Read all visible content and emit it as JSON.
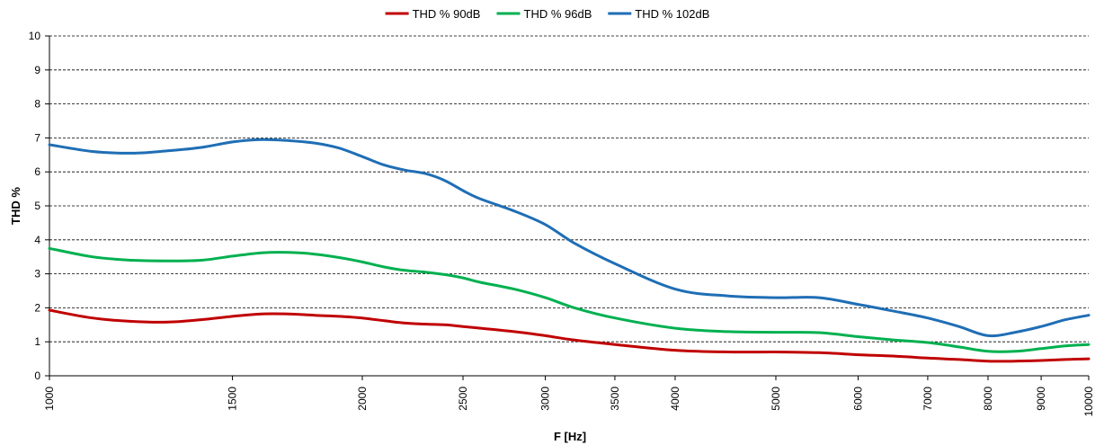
{
  "chart_data": {
    "type": "line",
    "xlabel": "F [Hz]",
    "ylabel": "THD %",
    "xscale": "log",
    "xlim": [
      1000,
      10000
    ],
    "ylim": [
      0,
      10
    ],
    "y_ticks": [
      "0",
      "1",
      "2",
      "3",
      "4",
      "5",
      "6",
      "7",
      "8",
      "9",
      "10"
    ],
    "x_ticks": [
      "1000",
      "1500",
      "2000",
      "2500",
      "3000",
      "3500",
      "4000",
      "5000",
      "6000",
      "7000",
      "8000",
      "9000",
      "10000"
    ],
    "grid": "horizontal-dashed",
    "legend_position": "top-center",
    "x": [
      1000,
      1100,
      1200,
      1300,
      1400,
      1500,
      1600,
      1700,
      1800,
      1900,
      2000,
      2100,
      2200,
      2300,
      2400,
      2500,
      2600,
      2800,
      3000,
      3200,
      3500,
      4000,
      4500,
      5000,
      5500,
      6000,
      6500,
      7000,
      7500,
      8000,
      8500,
      9000,
      9500,
      10000
    ],
    "series": [
      {
        "name": "THD % 90dB",
        "color": "#c00000",
        "values": [
          1.93,
          1.7,
          1.6,
          1.58,
          1.65,
          1.75,
          1.82,
          1.82,
          1.78,
          1.75,
          1.7,
          1.62,
          1.55,
          1.52,
          1.5,
          1.45,
          1.4,
          1.3,
          1.18,
          1.05,
          0.92,
          0.75,
          0.7,
          0.7,
          0.68,
          0.62,
          0.58,
          0.52,
          0.48,
          0.43,
          0.43,
          0.45,
          0.48,
          0.5
        ]
      },
      {
        "name": "THD % 96dB",
        "color": "#00b050",
        "values": [
          3.75,
          3.5,
          3.4,
          3.38,
          3.4,
          3.52,
          3.62,
          3.63,
          3.58,
          3.48,
          3.35,
          3.2,
          3.1,
          3.05,
          2.98,
          2.88,
          2.75,
          2.55,
          2.3,
          2.0,
          1.7,
          1.4,
          1.3,
          1.28,
          1.27,
          1.15,
          1.05,
          0.98,
          0.85,
          0.72,
          0.72,
          0.8,
          0.88,
          0.92
        ]
      },
      {
        "name": "THD % 102dB",
        "color": "#1f6eb5",
        "values": [
          6.8,
          6.6,
          6.55,
          6.62,
          6.72,
          6.88,
          6.95,
          6.92,
          6.85,
          6.7,
          6.45,
          6.2,
          6.05,
          5.95,
          5.75,
          5.45,
          5.2,
          4.85,
          4.45,
          3.9,
          3.3,
          2.55,
          2.35,
          2.3,
          2.3,
          2.1,
          1.9,
          1.7,
          1.45,
          1.18,
          1.28,
          1.45,
          1.65,
          1.78
        ]
      }
    ]
  }
}
